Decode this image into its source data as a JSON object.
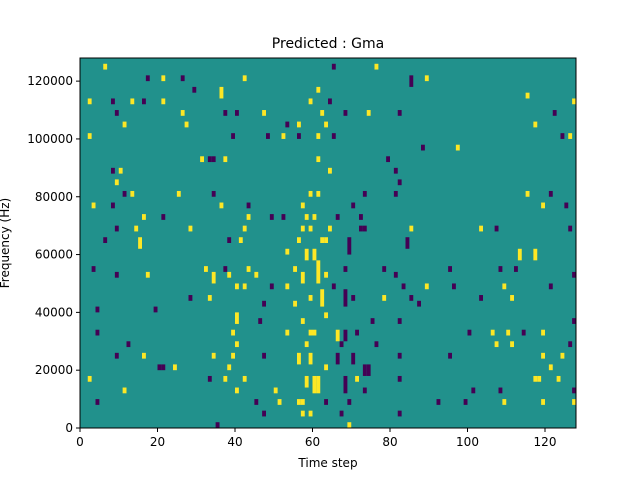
{
  "chart_data": {
    "type": "heatmap",
    "title": "Predicted : Gma",
    "xlabel": "Time step",
    "ylabel": "Frequency (Hz)",
    "xlim": [
      0,
      128
    ],
    "ylim": [
      0,
      128000
    ],
    "xticks": [
      0,
      20,
      40,
      60,
      80,
      100,
      120
    ],
    "yticks": [
      0,
      20000,
      40000,
      60000,
      80000,
      100000,
      120000
    ],
    "grid": false,
    "legend": "none",
    "bin_size_hz": 2000,
    "colors": {
      "background": "#21918c",
      "high": "#fde725",
      "low": "#440154"
    },
    "cells_format": "[time_step, frequency_bin_start_hz, frequency_bin_end_hz, level]",
    "cells": [
      [
        6,
        124000,
        126000,
        "high"
      ],
      [
        17,
        120000,
        122000,
        "low"
      ],
      [
        21,
        120000,
        122000,
        "high"
      ],
      [
        26,
        120000,
        122000,
        "low"
      ],
      [
        42,
        120000,
        122000,
        "high"
      ],
      [
        85,
        118000,
        122000,
        "low"
      ],
      [
        89,
        120000,
        122000,
        "high"
      ],
      [
        76,
        124000,
        126000,
        "high"
      ],
      [
        65,
        124000,
        126000,
        "low"
      ],
      [
        29,
        116000,
        118000,
        "low"
      ],
      [
        36,
        114000,
        118000,
        "high"
      ],
      [
        61,
        116000,
        118000,
        "high"
      ],
      [
        2,
        112000,
        114000,
        "high"
      ],
      [
        8,
        112000,
        114000,
        "low"
      ],
      [
        13,
        112000,
        114000,
        "high"
      ],
      [
        16,
        112000,
        114000,
        "low"
      ],
      [
        21,
        112000,
        114000,
        "high"
      ],
      [
        59,
        112000,
        114000,
        "high"
      ],
      [
        64,
        112000,
        114000,
        "low"
      ],
      [
        115,
        114000,
        116000,
        "high"
      ],
      [
        127,
        112000,
        114000,
        "high"
      ],
      [
        9,
        108000,
        110000,
        "low"
      ],
      [
        26,
        108000,
        110000,
        "high"
      ],
      [
        37,
        108000,
        110000,
        "low"
      ],
      [
        40,
        108000,
        110000,
        "low"
      ],
      [
        47,
        108000,
        110000,
        "high"
      ],
      [
        62,
        108000,
        110000,
        "high"
      ],
      [
        68,
        108000,
        110000,
        "low"
      ],
      [
        74,
        108000,
        110000,
        "high"
      ],
      [
        82,
        108000,
        110000,
        "low"
      ],
      [
        122,
        108000,
        110000,
        "low"
      ],
      [
        11,
        104000,
        106000,
        "high"
      ],
      [
        27,
        104000,
        106000,
        "high"
      ],
      [
        53,
        104000,
        106000,
        "low"
      ],
      [
        56,
        104000,
        106000,
        "high"
      ],
      [
        63,
        104000,
        106000,
        "high"
      ],
      [
        117,
        104000,
        106000,
        "high"
      ],
      [
        2,
        100000,
        102000,
        "high"
      ],
      [
        39,
        100000,
        102000,
        "low"
      ],
      [
        48,
        100000,
        102000,
        "low"
      ],
      [
        52,
        100000,
        102000,
        "high"
      ],
      [
        56,
        100000,
        102000,
        "low"
      ],
      [
        61,
        100000,
        102000,
        "high"
      ],
      [
        65,
        100000,
        102000,
        "low"
      ],
      [
        124,
        100000,
        102000,
        "low"
      ],
      [
        126,
        100000,
        102000,
        "high"
      ],
      [
        88,
        96000,
        98000,
        "low"
      ],
      [
        97,
        96000,
        98000,
        "high"
      ],
      [
        31,
        92000,
        94000,
        "high"
      ],
      [
        33,
        92000,
        94000,
        "low"
      ],
      [
        34,
        92000,
        94000,
        "low"
      ],
      [
        37,
        92000,
        94000,
        "high"
      ],
      [
        61,
        92000,
        94000,
        "high"
      ],
      [
        79,
        92000,
        94000,
        "low"
      ],
      [
        8,
        88000,
        90000,
        "low"
      ],
      [
        10,
        88000,
        90000,
        "high"
      ],
      [
        64,
        88000,
        90000,
        "high"
      ],
      [
        81,
        88000,
        90000,
        "low"
      ],
      [
        9,
        84000,
        86000,
        "high"
      ],
      [
        82,
        84000,
        86000,
        "low"
      ],
      [
        11,
        80000,
        82000,
        "low"
      ],
      [
        13,
        80000,
        82000,
        "high"
      ],
      [
        25,
        80000,
        82000,
        "high"
      ],
      [
        34,
        80000,
        82000,
        "low"
      ],
      [
        59,
        80000,
        82000,
        "high"
      ],
      [
        61,
        80000,
        82000,
        "high"
      ],
      [
        73,
        80000,
        82000,
        "low"
      ],
      [
        81,
        80000,
        82000,
        "low"
      ],
      [
        115,
        80000,
        82000,
        "high"
      ],
      [
        121,
        80000,
        82000,
        "low"
      ],
      [
        3,
        76000,
        78000,
        "high"
      ],
      [
        8,
        76000,
        78000,
        "low"
      ],
      [
        36,
        76000,
        78000,
        "high"
      ],
      [
        43,
        76000,
        78000,
        "low"
      ],
      [
        57,
        76000,
        78000,
        "high"
      ],
      [
        70,
        76000,
        78000,
        "low"
      ],
      [
        119,
        76000,
        78000,
        "high"
      ],
      [
        125,
        76000,
        78000,
        "low"
      ],
      [
        16,
        72000,
        74000,
        "high"
      ],
      [
        21,
        72000,
        74000,
        "low"
      ],
      [
        43,
        72000,
        74000,
        "high"
      ],
      [
        49,
        72000,
        74000,
        "low"
      ],
      [
        52,
        72000,
        74000,
        "low"
      ],
      [
        58,
        72000,
        74000,
        "high"
      ],
      [
        60,
        72000,
        74000,
        "high"
      ],
      [
        66,
        72000,
        74000,
        "low"
      ],
      [
        72,
        72000,
        74000,
        "low"
      ],
      [
        9,
        68000,
        70000,
        "low"
      ],
      [
        14,
        68000,
        70000,
        "high"
      ],
      [
        28,
        68000,
        70000,
        "high"
      ],
      [
        42,
        68000,
        70000,
        "high"
      ],
      [
        57,
        68000,
        70000,
        "high"
      ],
      [
        59,
        68000,
        70000,
        "high"
      ],
      [
        64,
        68000,
        70000,
        "high"
      ],
      [
        72,
        68000,
        70000,
        "low"
      ],
      [
        73,
        68000,
        70000,
        "low"
      ],
      [
        85,
        68000,
        70000,
        "high"
      ],
      [
        103,
        68000,
        70000,
        "high"
      ],
      [
        107,
        68000,
        70000,
        "low"
      ],
      [
        126,
        68000,
        70000,
        "low"
      ],
      [
        6,
        64000,
        66000,
        "low"
      ],
      [
        15,
        62000,
        66000,
        "high"
      ],
      [
        38,
        64000,
        66000,
        "low"
      ],
      [
        41,
        64000,
        66000,
        "high"
      ],
      [
        56,
        64000,
        66000,
        "high"
      ],
      [
        62,
        64000,
        66000,
        "high"
      ],
      [
        63,
        64000,
        66000,
        "high"
      ],
      [
        69,
        60000,
        66000,
        "low"
      ],
      [
        84,
        62000,
        66000,
        "low"
      ],
      [
        53,
        60000,
        62000,
        "high"
      ],
      [
        58,
        58000,
        62000,
        "high"
      ],
      [
        60,
        58000,
        62000,
        "high"
      ],
      [
        113,
        58000,
        62000,
        "high"
      ],
      [
        117,
        58000,
        62000,
        "high"
      ],
      [
        3,
        54000,
        56000,
        "low"
      ],
      [
        32,
        54000,
        56000,
        "high"
      ],
      [
        37,
        54000,
        56000,
        "low"
      ],
      [
        43,
        54000,
        56000,
        "high"
      ],
      [
        55,
        54000,
        56000,
        "high"
      ],
      [
        61,
        50000,
        58000,
        "high"
      ],
      [
        68,
        54000,
        56000,
        "low"
      ],
      [
        78,
        54000,
        56000,
        "low"
      ],
      [
        95,
        54000,
        56000,
        "low"
      ],
      [
        108,
        54000,
        56000,
        "low"
      ],
      [
        112,
        54000,
        56000,
        "low"
      ],
      [
        127,
        52000,
        54000,
        "low"
      ],
      [
        9,
        52000,
        54000,
        "low"
      ],
      [
        17,
        52000,
        54000,
        "high"
      ],
      [
        34,
        50000,
        54000,
        "high"
      ],
      [
        38,
        52000,
        54000,
        "high"
      ],
      [
        45,
        52000,
        54000,
        "high"
      ],
      [
        57,
        50000,
        54000,
        "high"
      ],
      [
        63,
        52000,
        54000,
        "high"
      ],
      [
        81,
        52000,
        54000,
        "low"
      ],
      [
        40,
        48000,
        50000,
        "high"
      ],
      [
        42,
        48000,
        50000,
        "high"
      ],
      [
        49,
        48000,
        50000,
        "low"
      ],
      [
        53,
        48000,
        50000,
        "high"
      ],
      [
        65,
        48000,
        50000,
        "low"
      ],
      [
        83,
        48000,
        50000,
        "low"
      ],
      [
        89,
        48000,
        50000,
        "high"
      ],
      [
        96,
        48000,
        50000,
        "low"
      ],
      [
        109,
        48000,
        50000,
        "high"
      ],
      [
        121,
        48000,
        50000,
        "low"
      ],
      [
        28,
        44000,
        46000,
        "low"
      ],
      [
        33,
        44000,
        46000,
        "high"
      ],
      [
        59,
        44000,
        46000,
        "high"
      ],
      [
        62,
        42000,
        48000,
        "high"
      ],
      [
        68,
        42000,
        48000,
        "low"
      ],
      [
        70,
        44000,
        46000,
        "low"
      ],
      [
        78,
        44000,
        46000,
        "high"
      ],
      [
        85,
        44000,
        46000,
        "low"
      ],
      [
        103,
        44000,
        46000,
        "low"
      ],
      [
        111,
        44000,
        46000,
        "high"
      ],
      [
        4,
        40000,
        42000,
        "low"
      ],
      [
        19,
        40000,
        42000,
        "low"
      ],
      [
        47,
        42000,
        44000,
        "low"
      ],
      [
        55,
        42000,
        44000,
        "high"
      ],
      [
        87,
        42000,
        44000,
        "low"
      ],
      [
        40,
        36000,
        40000,
        "high"
      ],
      [
        46,
        36000,
        38000,
        "low"
      ],
      [
        57,
        36000,
        38000,
        "high"
      ],
      [
        63,
        38000,
        40000,
        "high"
      ],
      [
        75,
        36000,
        38000,
        "low"
      ],
      [
        82,
        36000,
        38000,
        "low"
      ],
      [
        127,
        36000,
        38000,
        "low"
      ],
      [
        4,
        32000,
        34000,
        "low"
      ],
      [
        39,
        32000,
        34000,
        "high"
      ],
      [
        53,
        32000,
        34000,
        "high"
      ],
      [
        59,
        32000,
        34000,
        "high"
      ],
      [
        60,
        32000,
        34000,
        "high"
      ],
      [
        66,
        30000,
        34000,
        "high"
      ],
      [
        68,
        30000,
        34000,
        "low"
      ],
      [
        71,
        32000,
        34000,
        "low"
      ],
      [
        100,
        32000,
        34000,
        "low"
      ],
      [
        106,
        32000,
        34000,
        "high"
      ],
      [
        110,
        32000,
        34000,
        "high"
      ],
      [
        114,
        32000,
        34000,
        "low"
      ],
      [
        119,
        32000,
        34000,
        "high"
      ],
      [
        12,
        28000,
        30000,
        "low"
      ],
      [
        40,
        28000,
        30000,
        "high"
      ],
      [
        58,
        28000,
        30000,
        "high"
      ],
      [
        67,
        28000,
        30000,
        "low"
      ],
      [
        76,
        28000,
        30000,
        "low"
      ],
      [
        107,
        28000,
        30000,
        "high"
      ],
      [
        111,
        28000,
        30000,
        "high"
      ],
      [
        126,
        28000,
        30000,
        "low"
      ],
      [
        9,
        24000,
        26000,
        "low"
      ],
      [
        16,
        24000,
        26000,
        "high"
      ],
      [
        34,
        24000,
        26000,
        "high"
      ],
      [
        39,
        24000,
        26000,
        "high"
      ],
      [
        47,
        24000,
        26000,
        "low"
      ],
      [
        56,
        22000,
        26000,
        "high"
      ],
      [
        59,
        22000,
        26000,
        "high"
      ],
      [
        66,
        22000,
        26000,
        "low"
      ],
      [
        70,
        22000,
        26000,
        "low"
      ],
      [
        82,
        24000,
        26000,
        "low"
      ],
      [
        95,
        24000,
        26000,
        "low"
      ],
      [
        119,
        24000,
        26000,
        "high"
      ],
      [
        124,
        24000,
        26000,
        "high"
      ],
      [
        20,
        20000,
        22000,
        "low"
      ],
      [
        21,
        20000,
        22000,
        "low"
      ],
      [
        24,
        20000,
        22000,
        "high"
      ],
      [
        38,
        20000,
        22000,
        "high"
      ],
      [
        63,
        20000,
        22000,
        "high"
      ],
      [
        73,
        18000,
        22000,
        "low"
      ],
      [
        74,
        18000,
        22000,
        "low"
      ],
      [
        121,
        20000,
        22000,
        "high"
      ],
      [
        2,
        16000,
        18000,
        "high"
      ],
      [
        33,
        16000,
        18000,
        "low"
      ],
      [
        37,
        16000,
        18000,
        "high"
      ],
      [
        42,
        16000,
        18000,
        "high"
      ],
      [
        58,
        14000,
        18000,
        "high"
      ],
      [
        60,
        12000,
        18000,
        "high"
      ],
      [
        61,
        12000,
        18000,
        "high"
      ],
      [
        68,
        12000,
        18000,
        "low"
      ],
      [
        71,
        16000,
        18000,
        "high"
      ],
      [
        82,
        16000,
        18000,
        "low"
      ],
      [
        117,
        16000,
        18000,
        "high"
      ],
      [
        118,
        16000,
        18000,
        "high"
      ],
      [
        123,
        16000,
        18000,
        "high"
      ],
      [
        11,
        12000,
        14000,
        "high"
      ],
      [
        40,
        12000,
        14000,
        "high"
      ],
      [
        50,
        12000,
        14000,
        "high"
      ],
      [
        73,
        12000,
        14000,
        "low"
      ],
      [
        101,
        12000,
        14000,
        "low"
      ],
      [
        108,
        12000,
        14000,
        "low"
      ],
      [
        127,
        12000,
        14000,
        "low"
      ],
      [
        4,
        8000,
        10000,
        "low"
      ],
      [
        45,
        8000,
        10000,
        "low"
      ],
      [
        51,
        8000,
        10000,
        "high"
      ],
      [
        56,
        8000,
        10000,
        "high"
      ],
      [
        57,
        8000,
        10000,
        "high"
      ],
      [
        63,
        8000,
        10000,
        "low"
      ],
      [
        69,
        8000,
        10000,
        "low"
      ],
      [
        92,
        8000,
        10000,
        "low"
      ],
      [
        99,
        8000,
        10000,
        "low"
      ],
      [
        109,
        8000,
        10000,
        "high"
      ],
      [
        119,
        8000,
        10000,
        "high"
      ],
      [
        127,
        8000,
        10000,
        "high"
      ],
      [
        47,
        4000,
        6000,
        "low"
      ],
      [
        57,
        4000,
        6000,
        "high"
      ],
      [
        59,
        4000,
        6000,
        "high"
      ],
      [
        67,
        4000,
        6000,
        "low"
      ],
      [
        82,
        4000,
        6000,
        "low"
      ],
      [
        35,
        0,
        2000,
        "low"
      ],
      [
        69,
        0,
        2000,
        "high"
      ]
    ]
  }
}
